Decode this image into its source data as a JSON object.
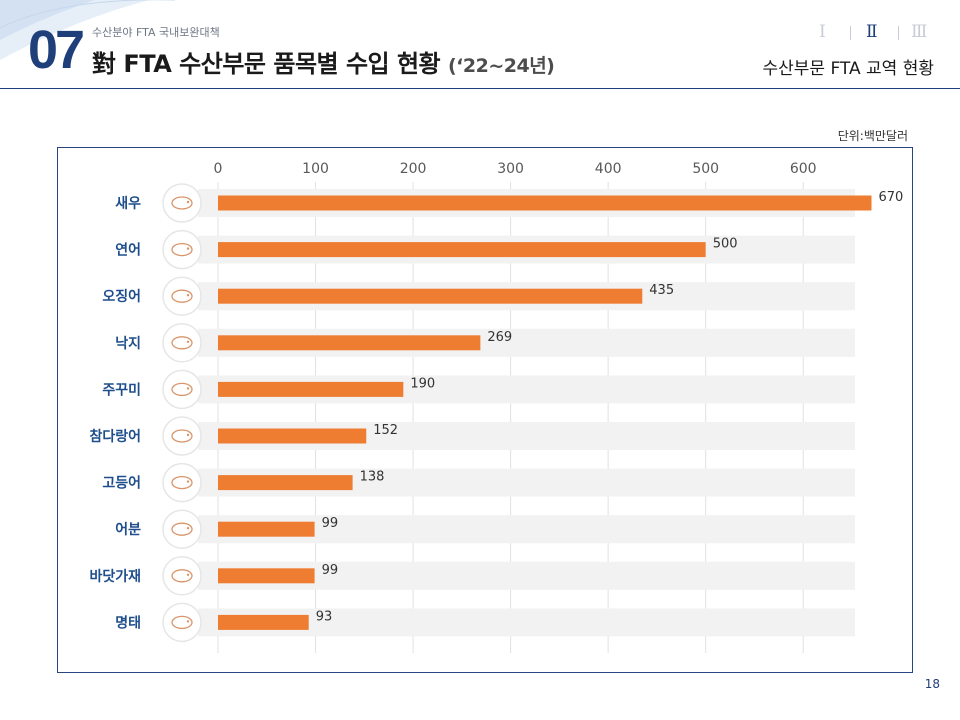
{
  "header": {
    "section_number": "07",
    "kicker": "수산분야 FTA 국내보완대책",
    "title": "對 FTA 수산부문 품목별 수입 현황",
    "title_period": "(‘22~24년)",
    "nav": [
      "Ⅰ",
      "Ⅱ",
      "Ⅲ"
    ],
    "nav_active_index": 1,
    "section_name": "수산부문 FTA 교역 현황"
  },
  "unit_label": "단위:백만달러",
  "page_number": "18",
  "colors": {
    "bar": "#ee7d32",
    "track": "#f2f2f2",
    "category_label": "#1f4e8c",
    "icon_stroke": "#d9956a",
    "frame": "#27457e"
  },
  "chart_data": {
    "type": "bar",
    "orientation": "horizontal",
    "categories": [
      "새우",
      "연어",
      "오징어",
      "낙지",
      "주꾸미",
      "참다랑어",
      "고등어",
      "어분",
      "바닷가재",
      "명태"
    ],
    "icons": [
      "shrimp-icon",
      "salmon-icon",
      "squid-icon",
      "octopus-icon",
      "webfoot-octopus-icon",
      "tuna-icon",
      "mackerel-icon",
      "fishmeal-icon",
      "lobster-icon",
      "pollock-icon"
    ],
    "values": [
      670,
      500,
      435,
      269,
      190,
      152,
      138,
      99,
      99,
      93
    ],
    "value_labels": [
      "670",
      "500",
      "435",
      "269",
      "190",
      "152",
      "138",
      "99",
      "99",
      "93"
    ],
    "xlim": [
      0,
      650
    ],
    "xticks": [
      0,
      100,
      200,
      300,
      400,
      500,
      600
    ],
    "xtick_labels": [
      "0",
      "100",
      "200",
      "300",
      "400",
      "500",
      "600"
    ],
    "grid": true,
    "data_labels": true
  }
}
